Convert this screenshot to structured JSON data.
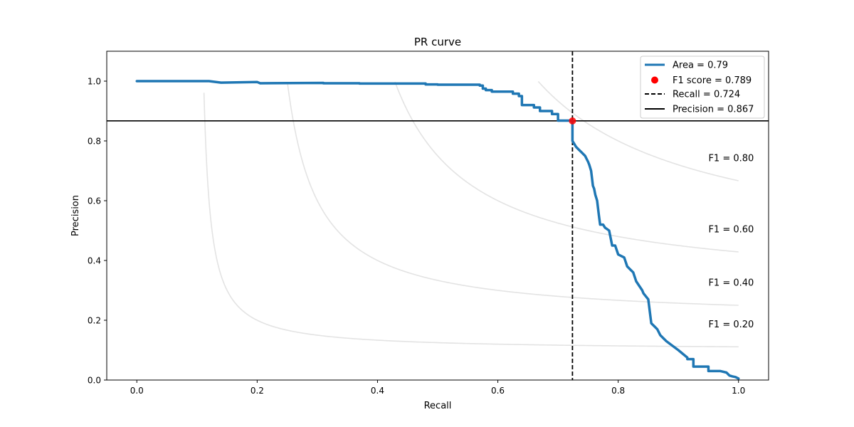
{
  "chart_data": {
    "type": "line",
    "title": "PR curve",
    "xlabel": "Recall",
    "ylabel": "Precision",
    "xlim": [
      -0.05,
      1.05
    ],
    "ylim": [
      0.0,
      1.1
    ],
    "xticks": [
      0.0,
      0.2,
      0.4,
      0.6,
      0.8,
      1.0
    ],
    "xtick_labels": [
      "0.0",
      "0.2",
      "0.4",
      "0.6",
      "0.8",
      "1.0"
    ],
    "yticks": [
      0.0,
      0.2,
      0.4,
      0.6,
      0.8,
      1.0
    ],
    "ytick_labels": [
      "0.0",
      "0.2",
      "0.4",
      "0.6",
      "0.8",
      "1.0"
    ],
    "grid": false,
    "legend_position": "top-right",
    "pr_series": {
      "name": "Area = 0.79",
      "color": "#1f77b4",
      "x": [
        0.0,
        0.12,
        0.14,
        0.2,
        0.205,
        0.31,
        0.31,
        0.37,
        0.37,
        0.48,
        0.48,
        0.5,
        0.5,
        0.57,
        0.57,
        0.575,
        0.575,
        0.58,
        0.58,
        0.59,
        0.59,
        0.605,
        0.605,
        0.625,
        0.625,
        0.635,
        0.635,
        0.64,
        0.64,
        0.645,
        0.645,
        0.66,
        0.66,
        0.67,
        0.67,
        0.68,
        0.68,
        0.69,
        0.69,
        0.7,
        0.7,
        0.72,
        0.724,
        0.724,
        0.727,
        0.73,
        0.735,
        0.74,
        0.745,
        0.75,
        0.752,
        0.755,
        0.758,
        0.76,
        0.762,
        0.765,
        0.768,
        0.77,
        0.775,
        0.778,
        0.785,
        0.79,
        0.795,
        0.8,
        0.81,
        0.815,
        0.82,
        0.825,
        0.83,
        0.84,
        0.842,
        0.85,
        0.855,
        0.86,
        0.865,
        0.87,
        0.88,
        0.9,
        0.915,
        0.915,
        0.925,
        0.925,
        0.95,
        0.95,
        0.97,
        0.98,
        0.985,
        0.99,
        0.995,
        1.0
      ],
      "y": [
        1.0,
        1.0,
        0.995,
        0.997,
        0.993,
        0.994,
        0.993,
        0.993,
        0.992,
        0.992,
        0.989,
        0.989,
        0.988,
        0.988,
        0.985,
        0.985,
        0.975,
        0.975,
        0.97,
        0.97,
        0.965,
        0.965,
        0.965,
        0.965,
        0.958,
        0.958,
        0.95,
        0.95,
        0.92,
        0.92,
        0.92,
        0.92,
        0.912,
        0.912,
        0.9,
        0.9,
        0.9,
        0.9,
        0.89,
        0.89,
        0.868,
        0.868,
        0.867,
        0.8,
        0.79,
        0.78,
        0.77,
        0.76,
        0.75,
        0.73,
        0.72,
        0.7,
        0.65,
        0.64,
        0.62,
        0.6,
        0.55,
        0.52,
        0.52,
        0.51,
        0.5,
        0.45,
        0.45,
        0.42,
        0.41,
        0.38,
        0.37,
        0.36,
        0.33,
        0.3,
        0.29,
        0.27,
        0.19,
        0.18,
        0.17,
        0.15,
        0.13,
        0.1,
        0.075,
        0.07,
        0.07,
        0.045,
        0.045,
        0.03,
        0.03,
        0.025,
        0.015,
        0.012,
        0.01,
        0.005
      ]
    },
    "f1_point": {
      "name": "F1 score = 0.789",
      "x": 0.724,
      "y": 0.867,
      "color": "#ff0000"
    },
    "recall_line": {
      "name": "Recall = 0.724",
      "x": 0.724,
      "color": "#000000",
      "style": "dashed"
    },
    "precision_line": {
      "name": "Precision = 0.867",
      "y": 0.867,
      "color": "#000000",
      "style": "solid"
    },
    "iso_f1": [
      {
        "f1": 0.2,
        "label": "F1 = 0.20"
      },
      {
        "f1": 0.4,
        "label": "F1 = 0.40"
      },
      {
        "f1": 0.6,
        "label": "F1 = 0.60"
      },
      {
        "f1": 0.8,
        "label": "F1 = 0.80"
      }
    ],
    "iso_f1_color": "#e3e3e3"
  }
}
